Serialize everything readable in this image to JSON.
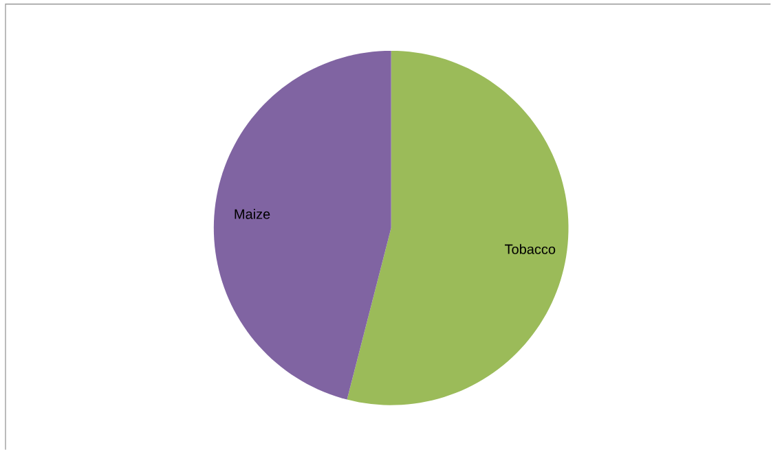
{
  "chart_data": {
    "type": "pie",
    "categories": [
      "Tobacco",
      "Maize"
    ],
    "values": [
      54,
      46
    ],
    "colors": [
      "#9bbb59",
      "#8064a2"
    ]
  }
}
